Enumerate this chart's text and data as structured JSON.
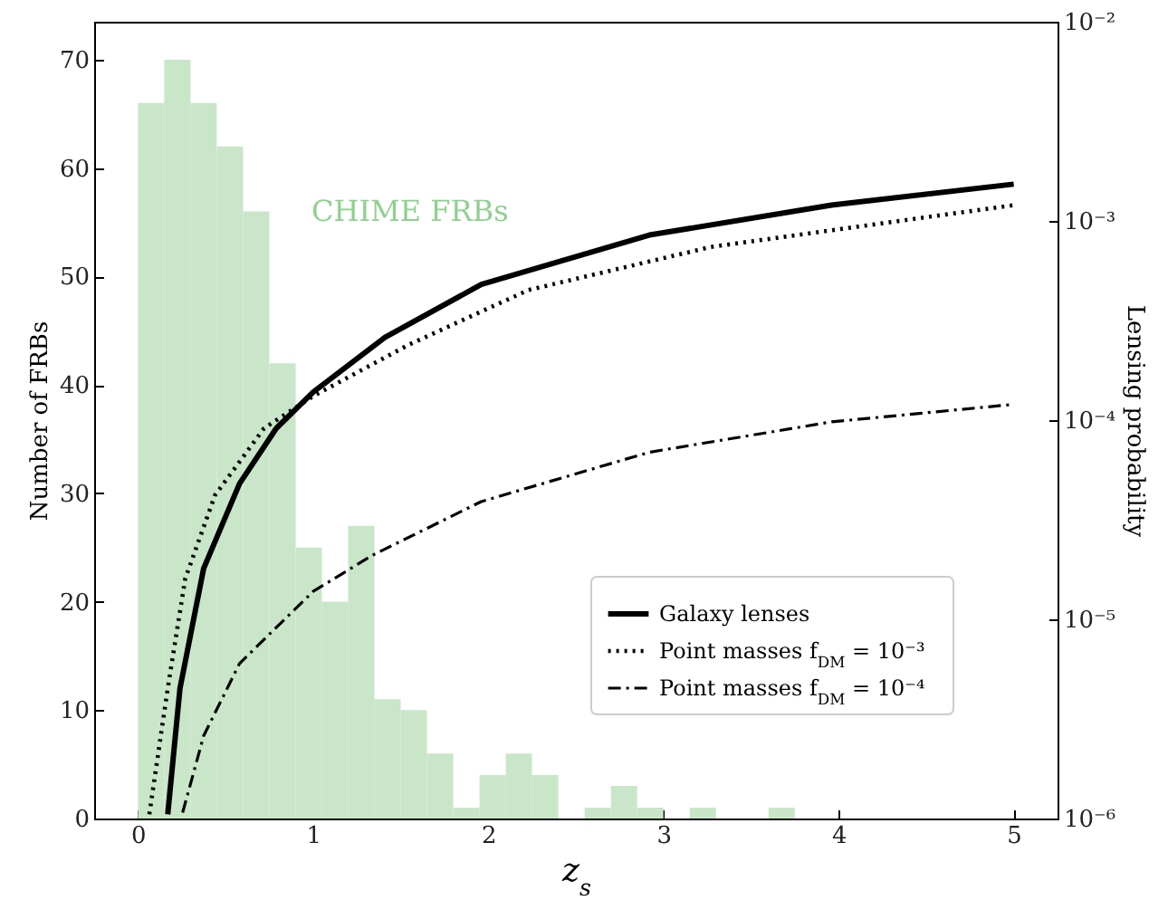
{
  "chart_data": {
    "type": "histogram",
    "bins": [
      0,
      0.15,
      0.3,
      0.45,
      0.6,
      0.75,
      0.9,
      1.05,
      1.2,
      1.35,
      1.5,
      1.65,
      1.8,
      1.95,
      2.1,
      2.25,
      2.4,
      2.55,
      2.7,
      2.85,
      3.0,
      3.15,
      3.3,
      3.45,
      3.6,
      3.75
    ],
    "values": [
      66,
      70,
      66,
      62,
      56,
      42,
      25,
      20,
      27,
      11,
      10,
      6,
      1,
      4,
      6,
      4,
      0,
      1,
      3,
      1,
      0,
      1,
      0,
      0,
      1
    ],
    "color": "#c9e6c9",
    "series": [
      {
        "name": "Galaxy lenses",
        "type": "line",
        "axis": "y2",
        "color": "#000000",
        "line_style": "solid",
        "x": [
          0.17,
          0.24,
          0.375,
          0.58,
          0.79,
          1.0,
          1.41,
          1.96,
          2.92,
          3.96,
          5.0
        ],
        "values": [
          1.05e-06,
          4.5e-06,
          1.8e-05,
          4.8e-05,
          9.1e-05,
          0.000138,
          0.00026,
          0.00048,
          0.00085,
          0.0012,
          0.00153
        ]
      },
      {
        "name": "Point masses f$_{DM}$ = 10⁻³",
        "type": "line",
        "axis": "y2",
        "color": "#000000",
        "line_style": "dotted",
        "x": [
          0.065,
          0.17,
          0.27,
          0.44,
          0.72,
          1.0,
          1.55,
          2.23,
          3.27,
          5.0
        ],
        "values": [
          1.05e-06,
          4.5e-06,
          1.6e-05,
          4.2e-05,
          9.1e-05,
          0.000132,
          0.00024,
          0.00045,
          0.00074,
          0.0012
        ]
      },
      {
        "name": "Point masses f$_{DM}$ = 10⁻⁴",
        "type": "line",
        "axis": "y2",
        "color": "#000000",
        "line_style": "dashdot",
        "x": [
          0.255,
          0.375,
          0.58,
          1.0,
          1.34,
          1.96,
          2.92,
          3.96,
          5.0
        ],
        "values": [
          1.07e-06,
          2.6e-06,
          6e-06,
          1.38e-05,
          2.1e-05,
          3.9e-05,
          6.9e-05,
          9.8e-05,
          0.00012
        ]
      }
    ],
    "xlabel": "z$_{s}$",
    "ylabel": "Number of FRBs",
    "y2label": "Lensing probability",
    "xlim": [
      -0.25,
      5.25
    ],
    "xticks": [
      0,
      1,
      2,
      3,
      4,
      5
    ],
    "ylim": [
      0,
      73.5
    ],
    "yticks": [
      0,
      10,
      20,
      30,
      40,
      50,
      60,
      70
    ],
    "y2lim": [
      1e-06,
      0.01
    ],
    "y2ticks": [
      {
        "value": 1e-06,
        "label": "10⁻⁶"
      },
      {
        "value": 1e-05,
        "label": "10⁻⁵"
      },
      {
        "value": 0.0001,
        "label": "10⁻⁴"
      },
      {
        "value": 0.001,
        "label": "10⁻³"
      },
      {
        "value": 0.01,
        "label": "10⁻²"
      }
    ],
    "log": "y2",
    "grid": false,
    "legend": "bottom right",
    "annotations": [
      "CHIME FRBs"
    ]
  }
}
